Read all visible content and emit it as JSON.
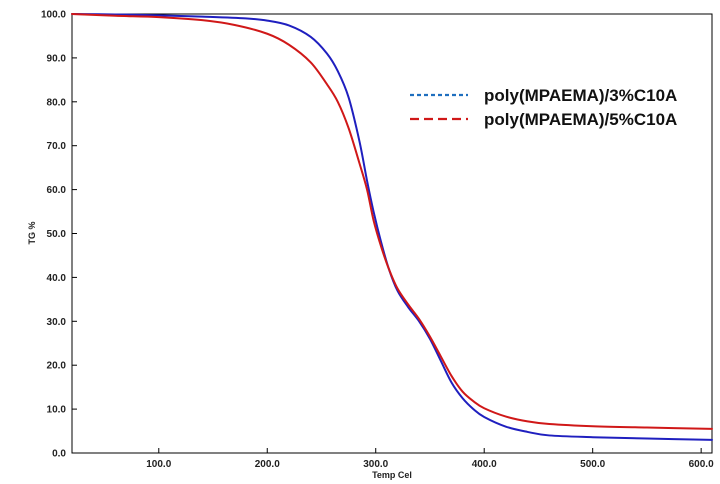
{
  "chart_data": {
    "type": "line",
    "title": "",
    "xlabel": "Temp Cel",
    "ylabel": "TG %",
    "xlim": [
      20,
      610
    ],
    "ylim": [
      0,
      100
    ],
    "x_ticks": [
      100,
      200,
      300,
      400,
      500,
      600
    ],
    "x_tick_labels": [
      "100.0",
      "200.0",
      "300.0",
      "400.0",
      "500.0",
      "600.0"
    ],
    "y_ticks": [
      0,
      10,
      20,
      30,
      40,
      50,
      60,
      70,
      80,
      90,
      100
    ],
    "y_tick_labels": [
      "0.0",
      "10.0",
      "20.0",
      "30.0",
      "40.0",
      "50.0",
      "60.0",
      "70.0",
      "80.0",
      "90.0",
      "100.0"
    ],
    "grid": false,
    "legend_position": "top-right",
    "series": [
      {
        "name": "poly(MPAEMA)/3%C10A",
        "color": "#1f1fbf",
        "legend_color": "#1f6fbf",
        "points": [
          [
            20,
            100
          ],
          [
            60,
            99.9
          ],
          [
            100,
            99.7
          ],
          [
            140,
            99.4
          ],
          [
            180,
            99
          ],
          [
            200,
            98.5
          ],
          [
            220,
            97.4
          ],
          [
            240,
            94.8
          ],
          [
            255,
            91
          ],
          [
            265,
            87
          ],
          [
            275,
            81
          ],
          [
            285,
            71
          ],
          [
            292,
            62
          ],
          [
            298,
            55
          ],
          [
            305,
            48
          ],
          [
            312,
            42
          ],
          [
            320,
            37
          ],
          [
            330,
            33.2
          ],
          [
            340,
            30
          ],
          [
            350,
            26
          ],
          [
            360,
            21
          ],
          [
            370,
            16
          ],
          [
            380,
            12.5
          ],
          [
            390,
            10
          ],
          [
            400,
            8.2
          ],
          [
            420,
            6
          ],
          [
            440,
            4.8
          ],
          [
            460,
            4
          ],
          [
            500,
            3.6
          ],
          [
            550,
            3.3
          ],
          [
            610,
            3
          ]
        ]
      },
      {
        "name": "poly(MPAEMA)/5%C10A",
        "color": "#d01818",
        "legend_color": "#d01818",
        "points": [
          [
            20,
            100
          ],
          [
            60,
            99.6
          ],
          [
            100,
            99.3
          ],
          [
            140,
            98.6
          ],
          [
            170,
            97.5
          ],
          [
            200,
            95.5
          ],
          [
            220,
            93
          ],
          [
            240,
            89
          ],
          [
            255,
            84
          ],
          [
            265,
            80
          ],
          [
            275,
            74
          ],
          [
            285,
            66
          ],
          [
            292,
            60
          ],
          [
            298,
            53
          ],
          [
            305,
            47
          ],
          [
            312,
            42
          ],
          [
            320,
            37.5
          ],
          [
            330,
            33.8
          ],
          [
            340,
            30.5
          ],
          [
            350,
            26.5
          ],
          [
            360,
            22
          ],
          [
            370,
            17.5
          ],
          [
            380,
            14
          ],
          [
            390,
            11.8
          ],
          [
            400,
            10.2
          ],
          [
            420,
            8.3
          ],
          [
            440,
            7.2
          ],
          [
            460,
            6.6
          ],
          [
            500,
            6.1
          ],
          [
            550,
            5.8
          ],
          [
            610,
            5.5
          ]
        ]
      }
    ]
  }
}
